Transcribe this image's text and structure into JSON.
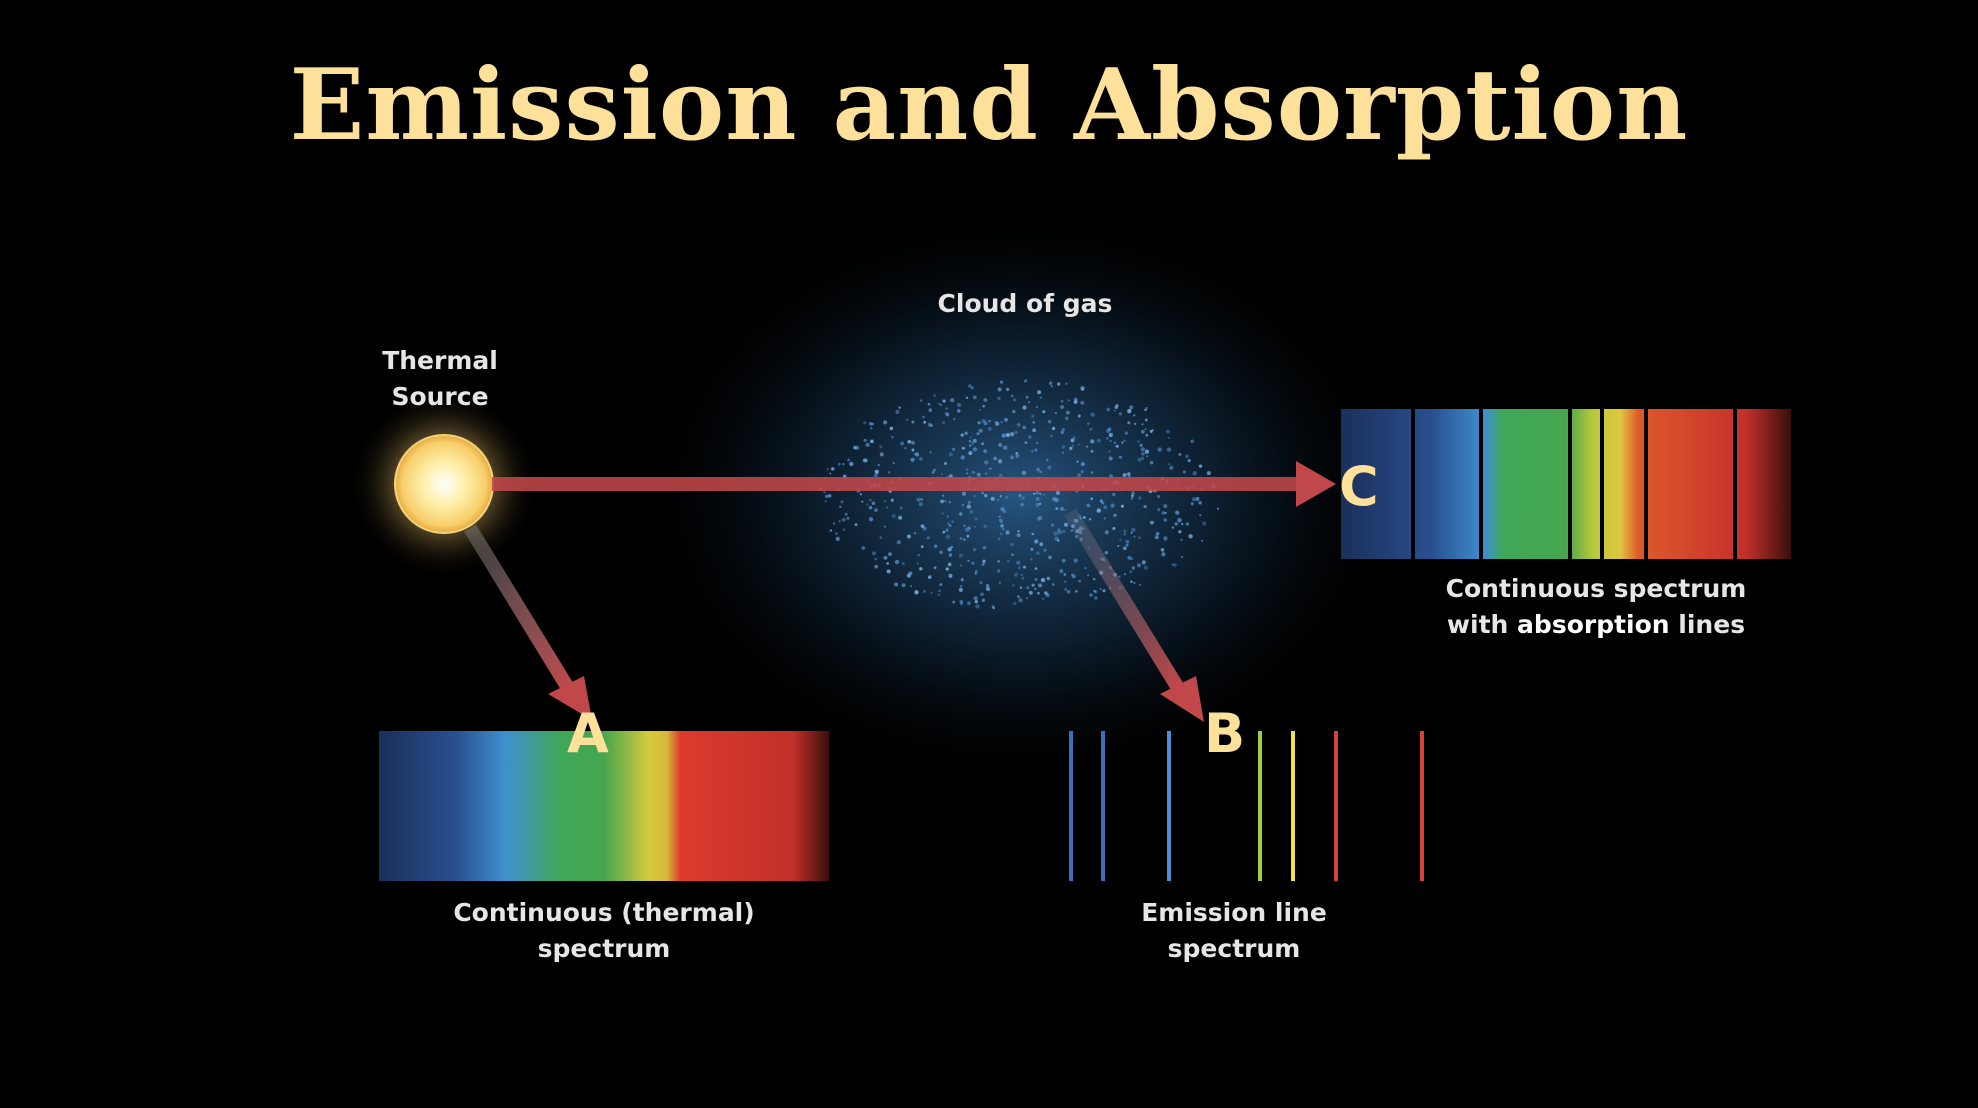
{
  "title": "Emission and Absorption",
  "labels": {
    "source_line1": "Thermal",
    "source_line2": "Source",
    "cloud": "Cloud of gas",
    "a_line1": "Continuous (thermal)",
    "a_line2": "spectrum",
    "b_line1": "Emission line",
    "b_line2": "spectrum",
    "c_line1": "Continuous spectrum",
    "c_line2_pre": "with ",
    "c_line2_bold": "absorption",
    "c_line2_post": " lines"
  },
  "letters": {
    "a": "A",
    "b": "B",
    "c": "C"
  },
  "colors": {
    "background": "#000000",
    "title": "#fde19a",
    "arrow": "#c0484a",
    "cloud": "#2a5c8a",
    "emission_lines": [
      "#3d6fb6",
      "#3d6fb6",
      "#4b8fd6",
      "#9acd4a",
      "#f0e24a",
      "#d8403a",
      "#d8403a"
    ]
  }
}
